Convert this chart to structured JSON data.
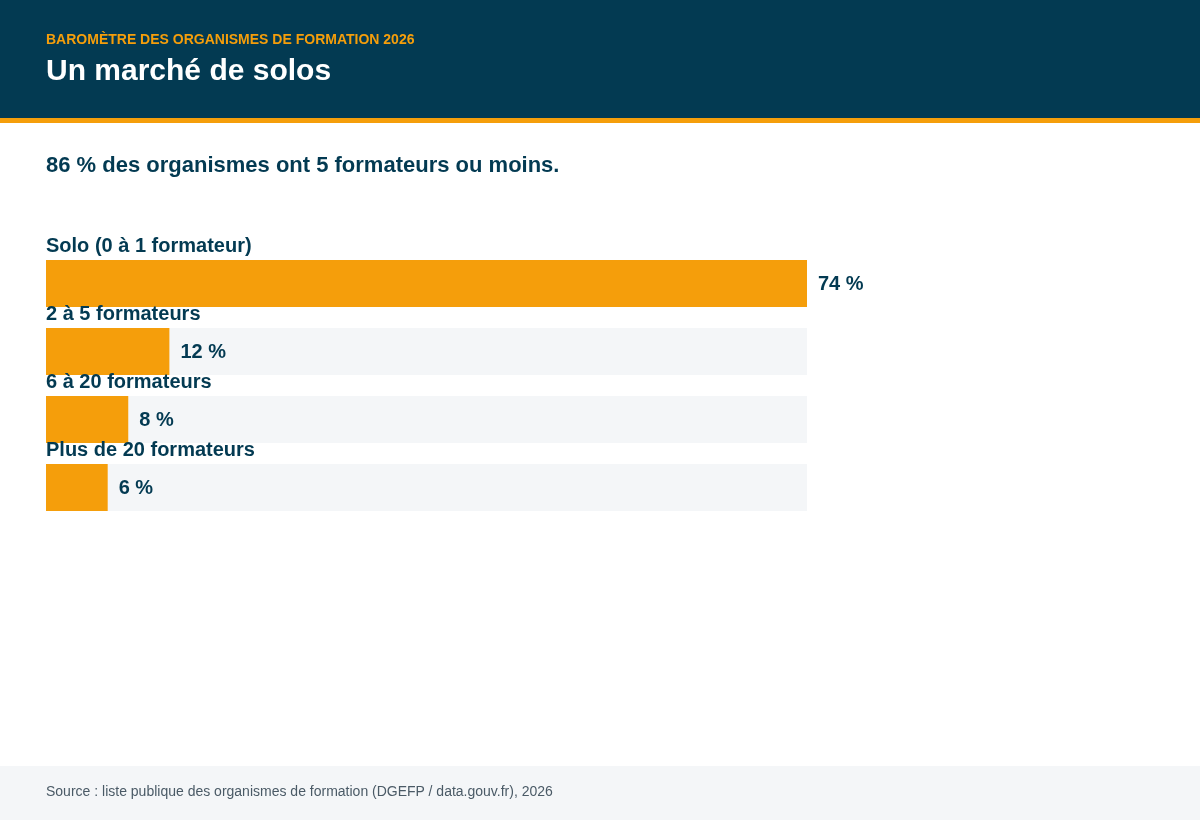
{
  "chart_data": {
    "type": "bar",
    "orientation": "horizontal",
    "title": "Un marché de solos",
    "subtitle": "86 % des organismes ont 5 formateurs ou moins.",
    "annotations": [
      "BAROMÈTRE DES ORGANISMES DE FORMATION 2026",
      "Source : liste publique des organismes de formation (DGEFP / data.gouv.fr), 2026"
    ],
    "categories": [
      "Solo (0 à 1 formateur)",
      "2 à 5 formateurs",
      "6 à 20 formateurs",
      "Plus de 20 formateurs"
    ],
    "values": [
      74,
      12,
      8,
      6
    ],
    "value_labels": [
      "74 %",
      "12 %",
      "8 %",
      "6 %"
    ],
    "color": "#f59e0b",
    "xlim": [
      0,
      74
    ]
  }
}
